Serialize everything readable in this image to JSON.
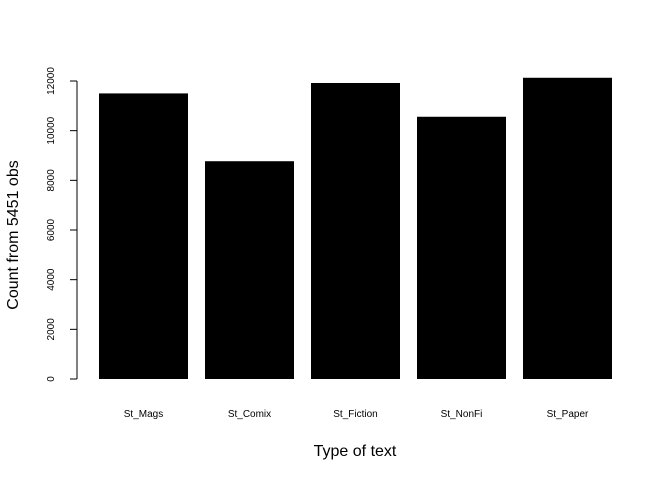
{
  "chart_data": {
    "type": "bar",
    "categories": [
      "St_Mags",
      "St_Comix",
      "St_Fiction",
      "St_NonFi",
      "St_Paper"
    ],
    "values": [
      11500,
      8770,
      11920,
      10560,
      12130
    ],
    "title": "",
    "xlabel": "Type of text",
    "ylabel": "Count from 5451 obs",
    "ylim": [
      0,
      12000
    ],
    "yticks": [
      0,
      2000,
      4000,
      6000,
      8000,
      10000,
      12000
    ],
    "grid": false,
    "bar_color": "#000000"
  }
}
